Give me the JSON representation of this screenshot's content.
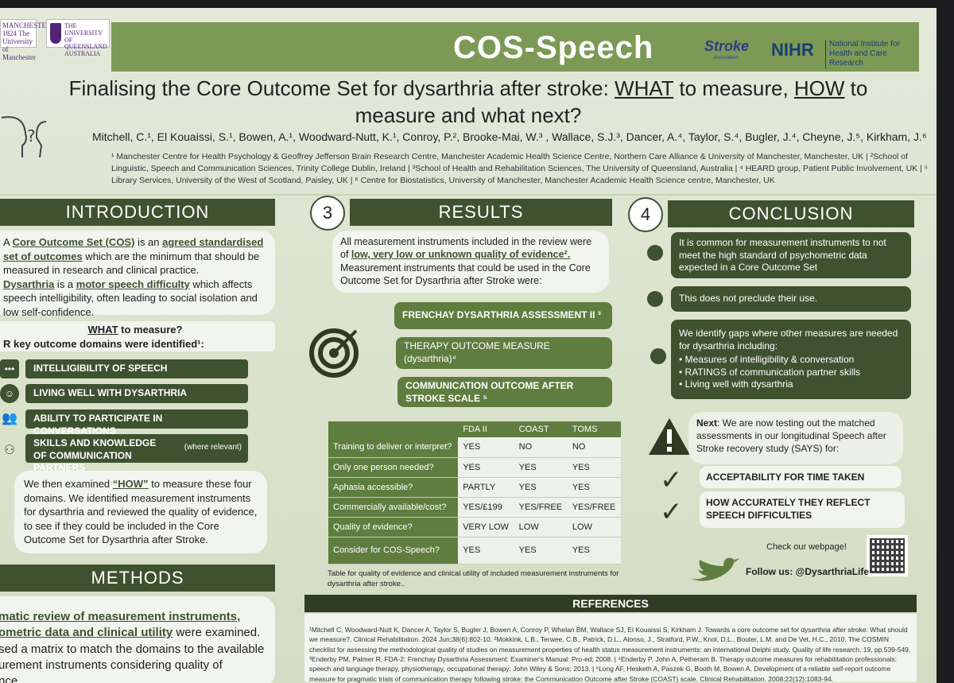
{
  "header": {
    "banner_title": "COS-Speech",
    "logo_manchester": "MANCHESTER 1824 The University of Manchester",
    "logo_uq": "THE UNIVERSITY OF QUEENSLAND AUSTRALIA",
    "logo_stroke": "Stroke",
    "logo_stroke_sub": "Association",
    "logo_nihr": "NIHR",
    "logo_nihr_text": "National Institute for Health and Care Research"
  },
  "title": {
    "part1": "Finalising the Core Outcome Set for dysarthria after stroke: ",
    "what": "WHAT",
    "part2": " to measure, ",
    "how": "HOW",
    "part3": " to",
    "line2": "measure and what next?"
  },
  "authors": "Mitchell, C.¹, El Kouaissi, S.¹, Bowen, A.¹, Woodward-Nutt, K.¹, Conroy, P.², Brooke-Mai, W.³ , Wallace, S.J.³, Dancer, A.⁴, Taylor, S.⁴, Bugler, J.⁴, Cheyne, J.⁵, Kirkham, J.⁶",
  "affiliations": "¹ Manchester Centre for Health Psychology & Geoffrey Jefferson Brain Research Centre, Manchester Academic Health Science Centre, Northern Care Alliance & University of Manchester, Manchester, UK | ²School of Linguistic, Speech and Communication Sciences, Trinity College Dublin, Ireland | ³School of Health and Rehabilitation Sciences, The University of Queensland, Australia | ⁴ HEARD group, Patient Public Involvement, UK | ⁵ Library Services, University of the West of Scotland, Paisley, UK | ⁶ Centre for Biostatistics, University of Manchester, Manchester Academic Health Science centre, Manchester, UK",
  "intro": {
    "heading": "INTRODUCTION",
    "p1_a": "A ",
    "p1_cos": "Core Outcome Set (COS)",
    "p1_b": " is an ",
    "p1_agreed": "agreed standardised set of outcomes",
    "p1_c": " which are the minimum that should be measured in research and clinical practice.",
    "p2_dys": "Dysarthria",
    "p2_a": " is a ",
    "p2_motor": "motor speech difficulty",
    "p2_b": " which affects speech intelligibility, often leading to social isolation and low self-confidence.",
    "what_q": "WHAT",
    "what_q_rest": " to measure?",
    "domains_line": "R key outcome domains were identified¹:",
    "domains": [
      {
        "icon": "speech-bubble-icon",
        "glyph": "•••",
        "label": "INTELLIGIBILITY OF SPEECH"
      },
      {
        "icon": "smile-icon",
        "glyph": "☺",
        "label": "LIVING WELL WITH DYSARTHRIA"
      },
      {
        "icon": "people-icon",
        "glyph": "👥",
        "label": "ABILITY TO PARTICIPATE IN CONVERSATIONS"
      },
      {
        "icon": "conversation-icon",
        "glyph": "⚇",
        "label": "SKILLS AND KNOWLEDGE OF COMMUNICATION PARTNERS",
        "note": "(where relevant)"
      }
    ],
    "how_a": "We then examined ",
    "how_q": "“HOW”",
    "how_b": " to measure  these four domains. We identified measurement instruments for dysarthria and reviewed the quality of evidence, to see if they could be included in the Core Outcome Set for Dysarthria after Stroke."
  },
  "methods": {
    "heading": "METHODS",
    "line1": "matic review of measurement instruments,",
    "line2_u": "ometric data and clinical utility",
    "line2_rest": " were examined.",
    "line3": "sed a matrix to match the domains to the available",
    "line4": "urement instruments considering quality of",
    "line5": "nce."
  },
  "results": {
    "number": "3",
    "heading": "RESULTS",
    "intro_a": "All measurement instruments included in the review were of ",
    "intro_u": "low, very low or unknown quality of evidence².",
    "intro_b": " Measurement instruments that could be used in the Core Outcome Set for Dysarthria after Stroke were:",
    "instruments": [
      "FRENCHAY DYSARTHRIA ASSESSMENT II ³",
      "THERAPY OUTCOME MEASURE (dysarthria)⁴",
      "COMMUNICATION OUTCOME AFTER STROKE SCALE ⁵"
    ],
    "table": {
      "headers": [
        "",
        "FDA II",
        "COAST",
        "TOMS"
      ],
      "rows": [
        [
          "Training to deliver or interpret?",
          "YES",
          "NO",
          "NO"
        ],
        [
          "Only one person needed?",
          "YES",
          "YES",
          "YES"
        ],
        [
          "Aphasia accessible?",
          "PARTLY",
          "YES",
          "YES"
        ],
        [
          "Commercially available/cost?",
          "YES/£199",
          "YES/FREE",
          "YES/FREE"
        ],
        [
          "Quality of evidence?",
          "VERY LOW",
          "LOW",
          "LOW"
        ],
        [
          "Consider for COS-Speech?",
          "YES",
          "YES",
          "YES"
        ]
      ]
    },
    "caption": "Table for quality of evidence and clinical utility of included measurement instruments for dysarthria after stroke.."
  },
  "conclusion": {
    "number": "4",
    "heading": "CONCLUSION",
    "c1": "It is common for measurement instruments to not meet the high standard of psychometric data expected in a Core Outcome Set",
    "c2": "This does not preclude their use.",
    "c3": "We identify gaps where other measures are needed for dysarthria including:",
    "c3_items": [
      "Measures of intelligibility & conversation",
      "RATINGS of communication partner skills",
      "Living well with dysarthria"
    ],
    "next_label": "Next",
    "next_text": ": We are now testing out the matched assessments in our longitudinal Speech after Stroke recovery study (SAYS) for:",
    "checks": [
      "ACCEPTABILITY FOR TIME TAKEN",
      "HOW ACCURATELY THEY REFLECT SPEECH DIFFICULTIES"
    ],
    "webpage": "Check our webpage!",
    "follow": "Follow us: @DysarthriaLife"
  },
  "references": {
    "heading": "REFERENCES",
    "text": "¹Mitchell C, Woodward-Nutt K, Dancer A, Taylor S, Bugler J, Bowen A, Conroy P, Whelan BM, Wallace SJ, El Kouaissi S, Kirkham J. Towards a core outcome set for dysarthria after stroke: What should we measure?. Clinical Rehabilitation. 2024 Jun;38(6):802-10. ²Mokkink, L.B., Terwee, C.B., Patrick, D.L., Alonso, J., Stratford, P.W., Knol, D.L., Bouter, L.M. and De Vet, H.C., 2010. The COSMIN checklist for assessing the methodological quality of studies on measurement properties of health status measurement instruments: an international Delphi study. Quality of life research, 19, pp.539-549. ³Enderby PM, Palmer R. FDA-2: Frenchay Dysarthria Assessment: Examiner's Manual: Pro-ed; 2008. | ⁴Enderby P, John A, Petheram B. Therapy outcome measures for rehabilitation professionals: speech and language therapy, physiotherapy, occupational therapy: John Wiley & Sons; 2013. | ⁵Long AF, Hesketh A, Paszek G, Booth M, Bowen A. Development of a reliable self-report outcome measure for pragmatic trials of communication therapy following stroke: the Communication Outcome after Stroke (COAST) scale. Clinical Rehabilitation. 2008;22(12):1083-94."
  }
}
